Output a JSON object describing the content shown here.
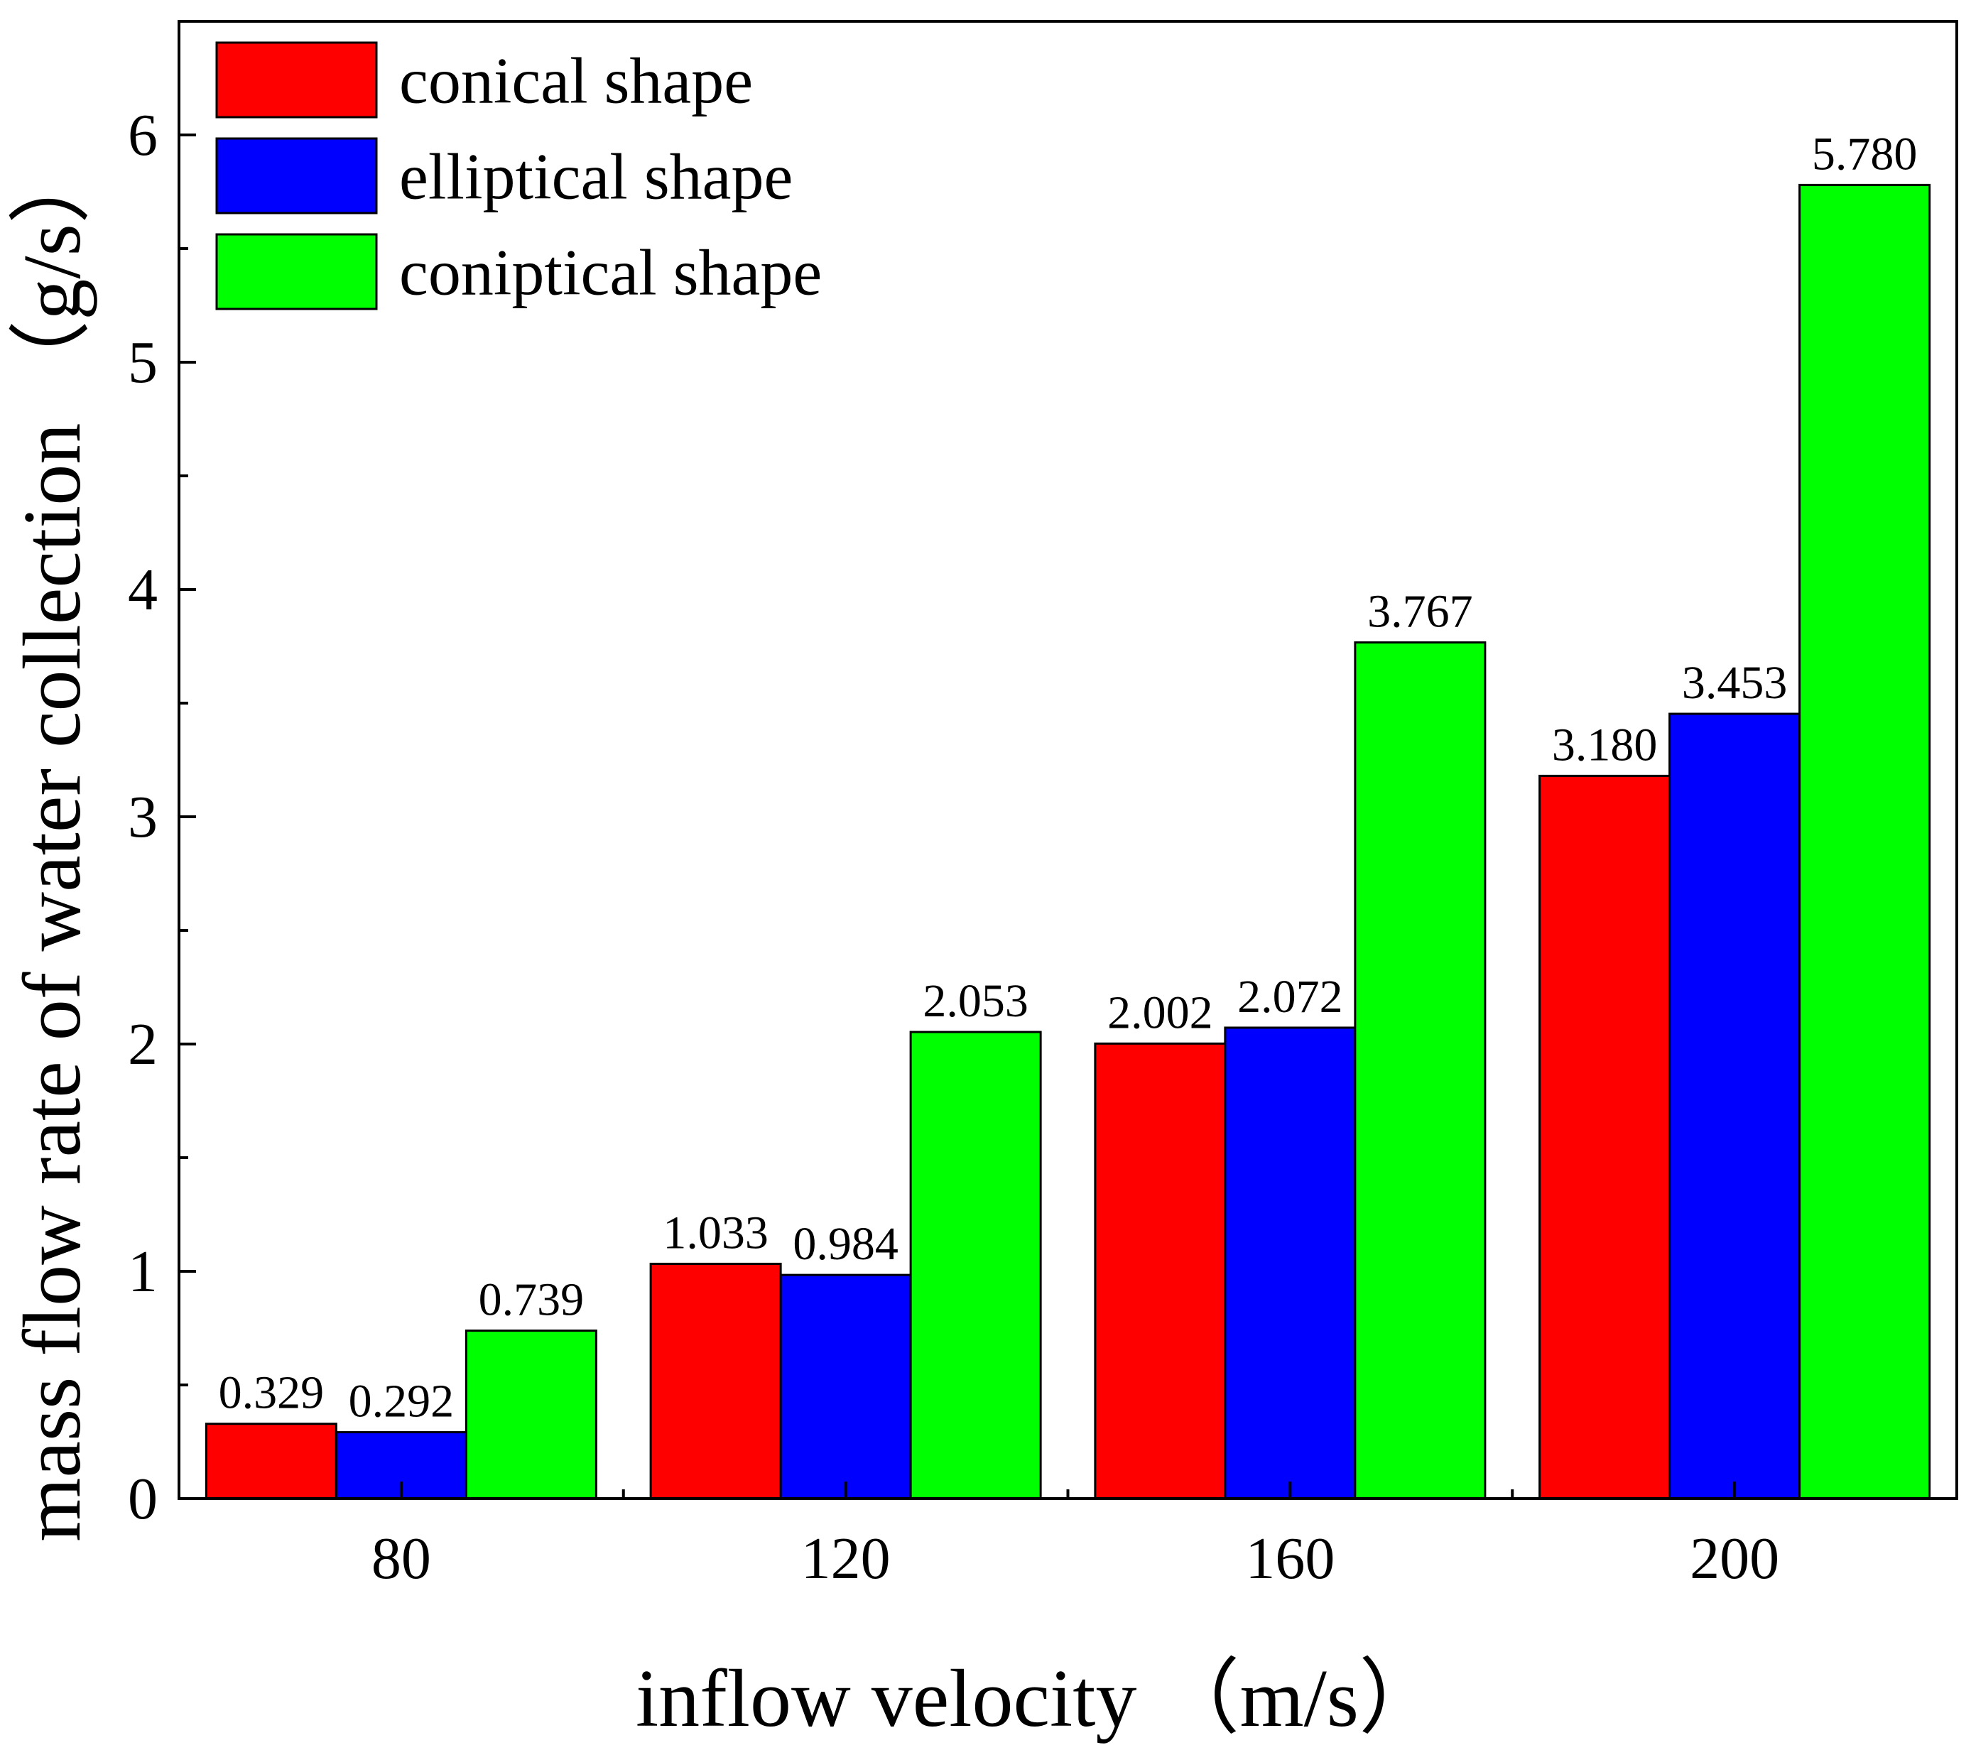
{
  "chart_data": {
    "type": "bar",
    "title": "",
    "xlabel": "inflow velocity （m/s）",
    "ylabel": "mass flow rate of water collection （g/s）",
    "categories": [
      "80",
      "120",
      "160",
      "200"
    ],
    "ylim": [
      0,
      6.5
    ],
    "yticks": [
      0,
      1,
      2,
      3,
      4,
      5,
      6
    ],
    "ytick_labels": [
      "0",
      "1",
      "2",
      "3",
      "4",
      "5",
      "6"
    ],
    "grid": false,
    "legend_position": "top-left",
    "series": [
      {
        "name": "conical shape",
        "color": "#ff0000",
        "values": [
          0.329,
          1.033,
          2.002,
          3.18
        ],
        "labels": [
          "0.329",
          "1.033",
          "2.002",
          "3.180"
        ]
      },
      {
        "name": "elliptical shape",
        "color": "#0000ff",
        "values": [
          0.292,
          0.984,
          2.072,
          3.453
        ],
        "labels": [
          "0.292",
          "0.984",
          "2.072",
          "3.453"
        ]
      },
      {
        "name": "coniptical shape",
        "color": "#00ff00",
        "values": [
          0.739,
          2.053,
          3.767,
          5.78
        ],
        "labels": [
          "0.739",
          "2.053",
          "3.767",
          "5.780"
        ]
      }
    ]
  }
}
